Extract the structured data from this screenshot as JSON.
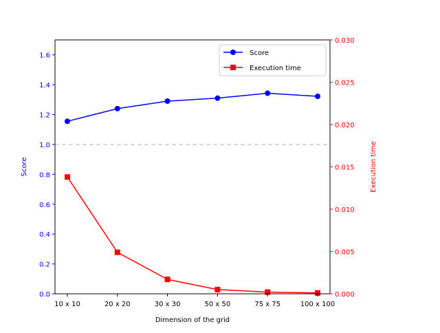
{
  "chart_data": {
    "type": "line",
    "title": "",
    "xlabel": "Dimension of the grid",
    "categories": [
      "10 x 10",
      "20 x 20",
      "30 x 30",
      "50 x 50",
      "75 x 75",
      "100 x 100"
    ],
    "left_axis": {
      "label": "Score",
      "color": "#0000ff",
      "ylim": [
        0,
        1.7
      ],
      "ticks": [
        0.0,
        0.2,
        0.4,
        0.6,
        0.8,
        1.0,
        1.2,
        1.4,
        1.6
      ],
      "tick_labels": [
        "0.0",
        "0.2",
        "0.4",
        "0.6",
        "0.8",
        "1.0",
        "1.2",
        "1.4",
        "1.6"
      ]
    },
    "right_axis": {
      "label": "Execution time",
      "color": "#ff0000",
      "ylim": [
        0,
        0.03
      ],
      "ticks": [
        0.0,
        0.005,
        0.01,
        0.015,
        0.02,
        0.025,
        0.03
      ],
      "tick_labels": [
        "0.000",
        "0.005",
        "0.010",
        "0.015",
        "0.020",
        "0.025",
        "0.030"
      ]
    },
    "series": [
      {
        "name": "Score",
        "axis": "left",
        "marker": "circle",
        "color": "#0000ff",
        "values": [
          1.155,
          1.24,
          1.29,
          1.31,
          1.343,
          1.322
        ]
      },
      {
        "name": "Execution time",
        "axis": "right",
        "marker": "square",
        "color": "#ff0000",
        "values": [
          0.0138,
          0.0049,
          0.0017,
          0.0005,
          0.0002,
          0.0001
        ]
      }
    ],
    "reference_line": {
      "axis": "left",
      "value": 1.0,
      "style": "dashed",
      "color": "#cccccc"
    },
    "legend": {
      "position": "top-right",
      "entries": [
        "Score",
        "Execution time"
      ]
    }
  }
}
